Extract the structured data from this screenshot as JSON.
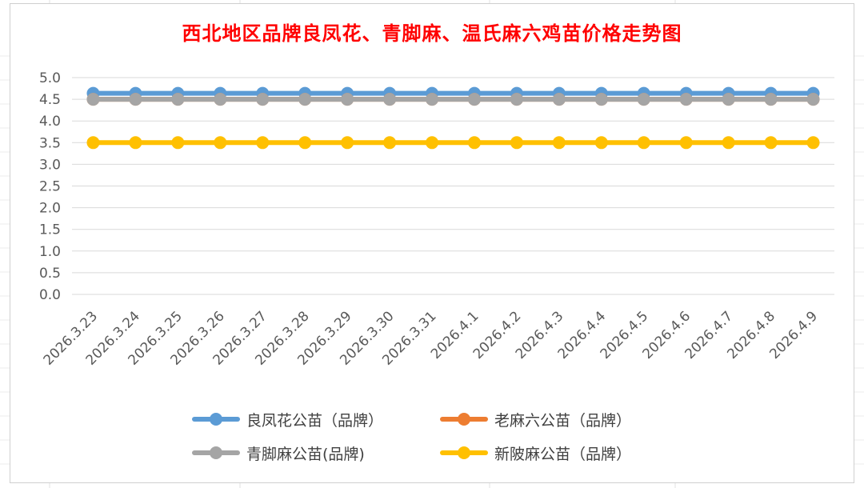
{
  "chart_data": {
    "type": "line",
    "title": "西北地区品牌良凤花、青脚麻、温氏麻六鸡苗价格走势图",
    "xlabel": "",
    "ylabel": "",
    "ylim": [
      0,
      5
    ],
    "yticks": [
      "0.0",
      "0.5",
      "1.0",
      "1.5",
      "2.0",
      "2.5",
      "3.0",
      "3.5",
      "4.0",
      "4.5",
      "5.0"
    ],
    "grid": true,
    "legend_position": "bottom",
    "categories": [
      "2026.3.23",
      "2026.3.24",
      "2026.3.25",
      "2026.3.26",
      "2026.3.27",
      "2026.3.28",
      "2026.3.29",
      "2026.3.30",
      "2026.3.31",
      "2026.4.1",
      "2026.4.2",
      "2026.4.3",
      "2026.4.4",
      "2026.4.5",
      "2026.4.6",
      "2026.4.7",
      "2026.4.8",
      "2026.4.9"
    ],
    "series": [
      {
        "name": "良凤花公苗（品牌）",
        "color": "#5b9bd5",
        "values": [
          4.6,
          4.6,
          4.6,
          4.6,
          4.6,
          4.6,
          4.6,
          4.6,
          4.6,
          4.6,
          4.6,
          4.6,
          4.6,
          4.6,
          4.6,
          4.6,
          4.6,
          4.6
        ]
      },
      {
        "name": "老麻六公苗（品牌）",
        "color": "#ed7d31",
        "values": [
          4.5,
          4.5,
          4.5,
          4.5,
          4.5,
          4.5,
          4.5,
          4.5,
          4.5,
          4.5,
          4.5,
          4.5,
          4.5,
          4.5,
          4.5,
          4.5,
          4.5,
          4.5
        ]
      },
      {
        "name": "青脚麻公苗(品牌)",
        "color": "#a5a5a5",
        "values": [
          4.5,
          4.5,
          4.5,
          4.5,
          4.5,
          4.5,
          4.5,
          4.5,
          4.5,
          4.5,
          4.5,
          4.5,
          4.5,
          4.5,
          4.5,
          4.5,
          4.5,
          4.5
        ]
      },
      {
        "name": "新陂麻公苗（品牌）",
        "color": "#ffc000",
        "values": [
          3.5,
          3.5,
          3.5,
          3.5,
          3.5,
          3.5,
          3.5,
          3.5,
          3.5,
          3.5,
          3.5,
          3.5,
          3.5,
          3.5,
          3.5,
          3.5,
          3.5,
          3.5
        ]
      }
    ]
  }
}
